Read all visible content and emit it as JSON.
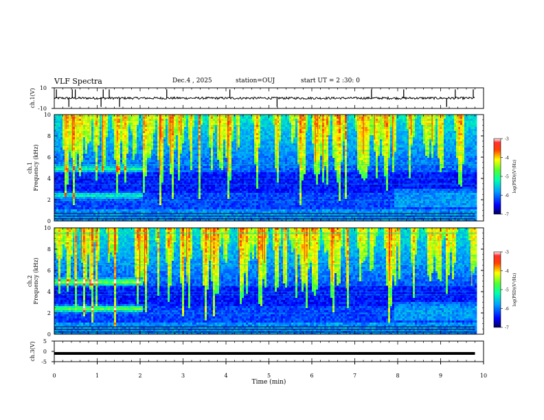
{
  "header": {
    "title": "VLF Spectra",
    "date": "Dec.4 , 2025",
    "station": "station=OUJ",
    "start": "start UT = 2 :30: 0"
  },
  "chart_data": [
    {
      "type": "line",
      "name": "ch1-waveform",
      "ylabel": "ch.1(V)",
      "ylim": [
        -10,
        10
      ],
      "yticks": [
        "10",
        "-10"
      ],
      "baseline": 0,
      "spikes_min": [
        0.05,
        0.34,
        0.42,
        0.49,
        1.09,
        1.14,
        1.28,
        1.52,
        2.62,
        4.09,
        5.19,
        7.39,
        8.14,
        9.14,
        9.34,
        9.76
      ]
    },
    {
      "type": "heatmap",
      "name": "ch1-spectrogram",
      "ylabel_top": "ch.1",
      "ylabel": "Frequency (kHz)",
      "ylim": [
        0,
        10
      ],
      "yticks": [
        "0",
        "2",
        "4",
        "6",
        "8",
        "10"
      ],
      "xlim": [
        0,
        10
      ],
      "data_end_min": 9.8,
      "colorbar": {
        "label": "log(PSD)(V²/Hz)",
        "ticks": [
          "-3",
          "-4",
          "-5",
          "-6",
          "-7"
        ],
        "range": [
          -7,
          -3
        ]
      },
      "bands_khz": [
        5.0,
        2.5
      ],
      "bands_end_min": 2.05
    },
    {
      "type": "heatmap",
      "name": "ch2-spectrogram",
      "ylabel_top": "ch.2",
      "ylabel": "Frequency (kHz)",
      "ylim": [
        0,
        10
      ],
      "yticks": [
        "0",
        "2",
        "4",
        "6",
        "8",
        "10"
      ],
      "xlim": [
        0,
        10
      ],
      "data_end_min": 9.8,
      "colorbar": {
        "label": "log(PSD)(V²/Hz)",
        "ticks": [
          "-3",
          "-4",
          "-5",
          "-6",
          "-7"
        ],
        "range": [
          -7,
          -3
        ]
      },
      "bands_khz": [
        5.0,
        2.5
      ],
      "bands_end_min": 2.05
    },
    {
      "type": "line",
      "name": "ch3-waveform",
      "ylabel": "ch.3(V)",
      "ylim": [
        -5,
        5
      ],
      "yticks": [
        "5",
        "0",
        "-5"
      ],
      "level": -1,
      "data_end_min": 9.8
    }
  ],
  "xaxis": {
    "label": "Time (min)",
    "ticks": [
      "0",
      "1",
      "2",
      "3",
      "4",
      "5",
      "6",
      "7",
      "8",
      "9",
      "10"
    ],
    "xlim": [
      0,
      10
    ]
  },
  "colors": {
    "axis": "#000000",
    "background": "#ffffff"
  }
}
